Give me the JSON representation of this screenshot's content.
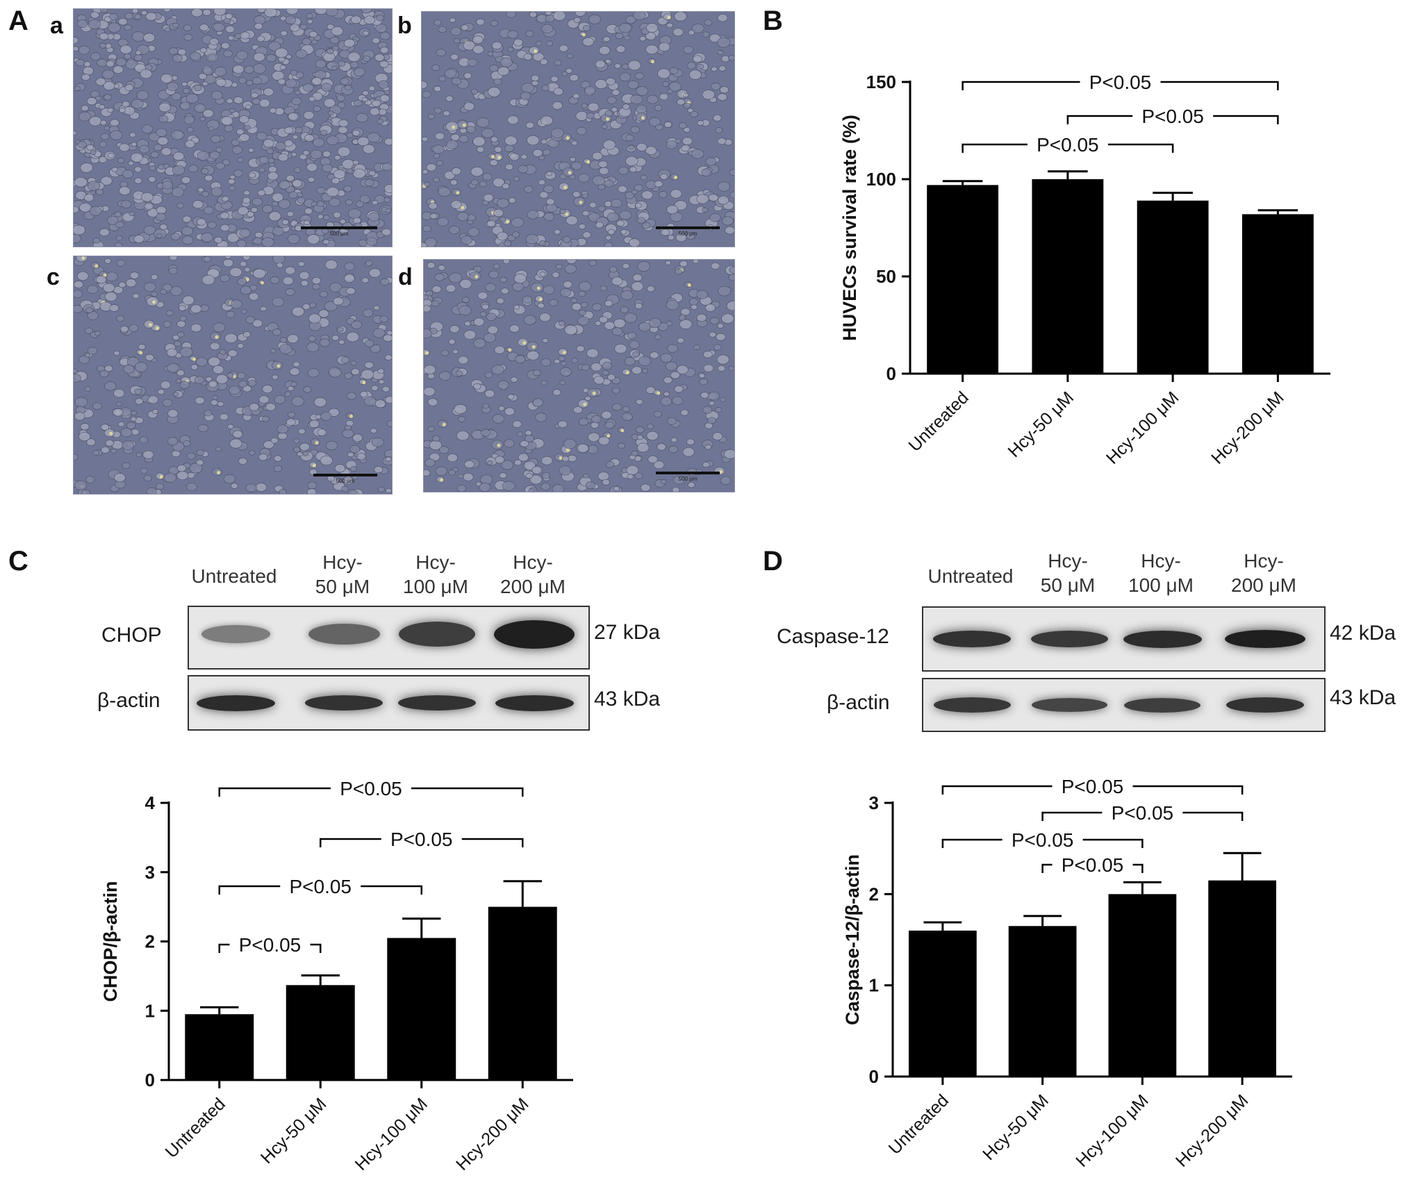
{
  "figure": {
    "panel_letters": {
      "A": "A",
      "B": "B",
      "C": "C",
      "D": "D"
    },
    "micrographs": [
      {
        "letter": "a",
        "scale_label": "500 μm"
      },
      {
        "letter": "b",
        "scale_label": "500 μm"
      },
      {
        "letter": "c",
        "scale_label": "500 μm"
      },
      {
        "letter": "d",
        "scale_label": "500 μm"
      }
    ],
    "colors": {
      "bar": "#000000",
      "micrograph_bg": "#6f7594",
      "blot_bg": "#e7e7e7",
      "band": "#1b1b1b"
    }
  },
  "blot_C": {
    "lanes": [
      {
        "line1": "Untreated",
        "line2": ""
      },
      {
        "line1": "Hcy-",
        "line2": "50 μM"
      },
      {
        "line1": "Hcy-",
        "line2": "100 μM"
      },
      {
        "line1": "Hcy-",
        "line2": "200 μM"
      }
    ],
    "rows": [
      {
        "protein": "CHOP",
        "size": "27 kDa",
        "intensity": [
          0.25,
          0.45,
          0.75,
          1.0
        ]
      },
      {
        "protein": "β-actin",
        "size": "43 kDa",
        "intensity": [
          0.9,
          0.85,
          0.85,
          0.9
        ]
      }
    ]
  },
  "blot_D": {
    "lanes": [
      {
        "line1": "Untreated",
        "line2": ""
      },
      {
        "line1": "Hcy-",
        "line2": "50 μM"
      },
      {
        "line1": "Hcy-",
        "line2": "100 μM"
      },
      {
        "line1": "Hcy-",
        "line2": "200 μM"
      }
    ],
    "rows": [
      {
        "protein": "Caspase-12",
        "size": "42 kDa",
        "intensity": [
          0.85,
          0.8,
          0.9,
          1.0
        ]
      },
      {
        "protein": "β-actin",
        "size": "43 kDa",
        "intensity": [
          0.8,
          0.7,
          0.75,
          0.85
        ]
      }
    ]
  },
  "chart_data": [
    {
      "id": "B",
      "type": "bar",
      "categories": [
        "Untreated",
        "Hcy-50 μM",
        "Hcy-100 μM",
        "Hcy-200 μM"
      ],
      "values": [
        97,
        100,
        89,
        82
      ],
      "errors": [
        2,
        4,
        4,
        2
      ],
      "ylabel": "HUVECs survival rate (%)",
      "ylim": [
        0,
        150
      ],
      "yticks": [
        0,
        50,
        100,
        150
      ],
      "grid": false,
      "significance": [
        {
          "from": 0,
          "to": 3,
          "label": "P<0.05"
        },
        {
          "from": 1,
          "to": 3,
          "label": "P<0.05"
        },
        {
          "from": 0,
          "to": 2,
          "label": "P<0.05"
        }
      ]
    },
    {
      "id": "C",
      "type": "bar",
      "categories": [
        "Untreated",
        "Hcy-50 μM",
        "Hcy-100 μM",
        "Hcy-200 μM"
      ],
      "values": [
        0.95,
        1.37,
        2.05,
        2.5
      ],
      "errors": [
        0.1,
        0.14,
        0.28,
        0.37
      ],
      "ylabel": "CHOP/β-actin",
      "ylim": [
        0,
        4
      ],
      "yticks": [
        0,
        1,
        2,
        3,
        4
      ],
      "grid": false,
      "significance": [
        {
          "from": 0,
          "to": 3,
          "label": "P<0.05"
        },
        {
          "from": 1,
          "to": 3,
          "label": "P<0.05"
        },
        {
          "from": 0,
          "to": 2,
          "label": "P<0.05"
        },
        {
          "from": 0,
          "to": 1,
          "label": "P<0.05"
        }
      ]
    },
    {
      "id": "D",
      "type": "bar",
      "categories": [
        "Untreated",
        "Hcy-50 μM",
        "Hcy-100 μM",
        "Hcy-200 μM"
      ],
      "values": [
        1.6,
        1.65,
        2.0,
        2.15
      ],
      "errors": [
        0.09,
        0.11,
        0.13,
        0.3
      ],
      "ylabel": "Caspase-12/β-actin",
      "ylim": [
        0,
        3
      ],
      "yticks": [
        0,
        1,
        2,
        3
      ],
      "grid": false,
      "significance": [
        {
          "from": 0,
          "to": 3,
          "label": "P<0.05"
        },
        {
          "from": 1,
          "to": 3,
          "label": "P<0.05"
        },
        {
          "from": 0,
          "to": 2,
          "label": "P<0.05"
        },
        {
          "from": 1,
          "to": 2,
          "label": "P<0.05"
        }
      ]
    }
  ]
}
